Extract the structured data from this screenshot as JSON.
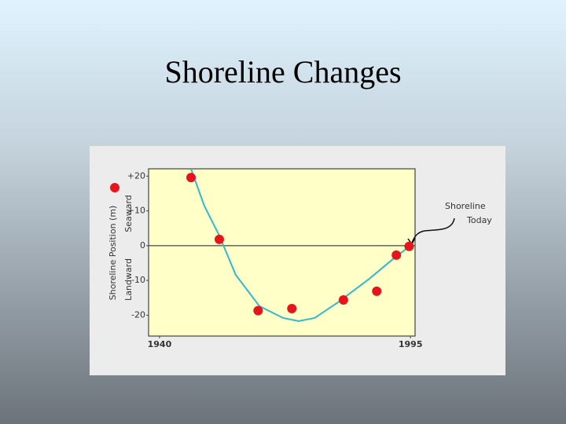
{
  "chart_data": {
    "type": "scatter",
    "title": "Shoreline Changes",
    "ylabel": "Shoreline Position (m)",
    "y_side_labels": [
      "Seaward",
      "Landward"
    ],
    "annotation": [
      "Shoreline",
      "Today"
    ],
    "xlim": [
      1937.6,
      1996
    ],
    "xticks": [
      1940,
      1995
    ],
    "ylim": [
      -26,
      22.1
    ],
    "yticks": [
      {
        "value": 20,
        "label": "+20"
      },
      {
        "value": 10,
        "label": "+10"
      },
      0,
      -10,
      -20
    ],
    "zero_line": true,
    "series": [
      {
        "color": "#e8141b",
        "x": [
          1946.9,
          1953.1,
          1961.6,
          1969.0,
          1980.3,
          1987.6,
          1991.9,
          1994.7
        ],
        "values": [
          19.6,
          1.8,
          -18.7,
          -18.1,
          -15.6,
          -13.1,
          -2.7,
          -0.2
        ]
      },
      {
        "color": "#33b8cc",
        "line": true,
        "x": [
          1946.9,
          1949.8,
          1953.1,
          1956.7,
          1961.9,
          1967.1,
          1970.5,
          1974.0,
          1979.1,
          1986.0,
          1991.2,
          1995.0
        ],
        "values": [
          22.1,
          11.5,
          2.9,
          -8.4,
          -17.4,
          -20.8,
          -21.7,
          -20.8,
          -16.3,
          -9.5,
          -3.8,
          0
        ]
      }
    ]
  }
}
